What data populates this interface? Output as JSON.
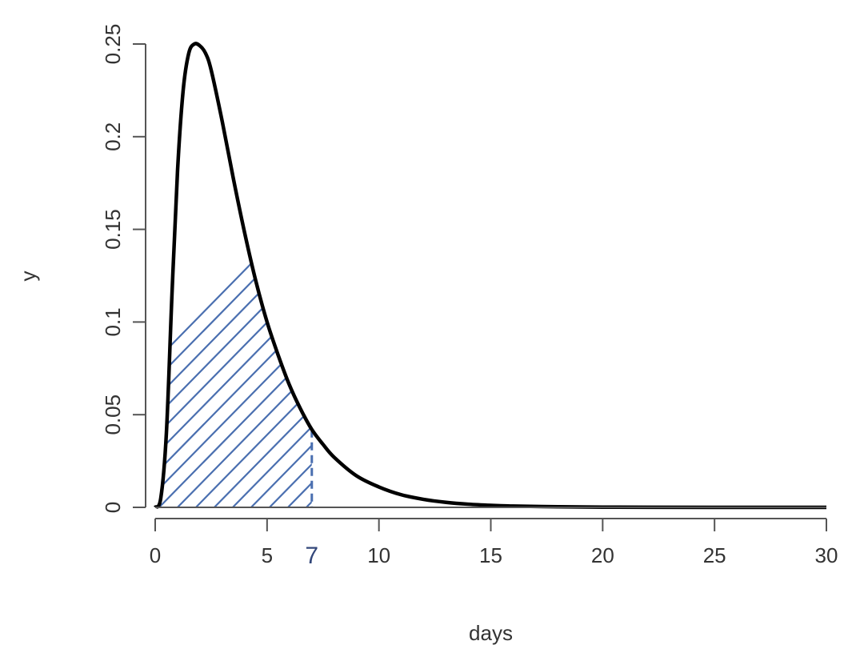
{
  "chart_data": {
    "type": "line",
    "xlabel": "days",
    "ylabel": "y",
    "xlim": [
      0,
      30
    ],
    "ylim": [
      0,
      0.25
    ],
    "x_ticks": [
      0,
      5,
      10,
      15,
      20,
      25,
      30
    ],
    "x_tick_labels": [
      "0",
      "5",
      "10",
      "15",
      "20",
      "25",
      "30"
    ],
    "y_ticks": [
      0,
      0.05,
      0.1,
      0.15,
      0.2,
      0.25
    ],
    "y_tick_labels": [
      "0",
      "0.05",
      "0.1",
      "0.15",
      "0.2",
      "0.25"
    ],
    "series": [
      {
        "x": [
          0,
          0.25,
          0.5,
          0.75,
          1,
          1.25,
          1.5,
          1.75,
          2,
          2.25,
          2.5,
          3,
          3.5,
          4,
          4.5,
          5,
          5.5,
          6,
          6.5,
          7,
          7.5,
          8,
          9,
          10,
          11,
          12,
          13,
          14,
          15,
          16,
          18,
          20,
          22,
          25,
          30
        ],
        "y": [
          0,
          0.005,
          0.04,
          0.115,
          0.182,
          0.225,
          0.245,
          0.25,
          0.249,
          0.245,
          0.236,
          0.208,
          0.177,
          0.148,
          0.122,
          0.1,
          0.082,
          0.066,
          0.053,
          0.042,
          0.034,
          0.027,
          0.017,
          0.011,
          0.0068,
          0.0043,
          0.0027,
          0.0017,
          0.0011,
          0.0007,
          0.0003,
          0.00012,
          5e-05,
          2e-05,
          0
        ],
        "color": "#000000"
      }
    ],
    "shaded_region": {
      "from": 0,
      "to": 7,
      "pattern": "hatched",
      "color": "#4a6fb0"
    },
    "marker": {
      "x": 7,
      "label": "7",
      "style": "dashed",
      "color": "#4a6fb0",
      "label_color": "#33477a"
    }
  }
}
